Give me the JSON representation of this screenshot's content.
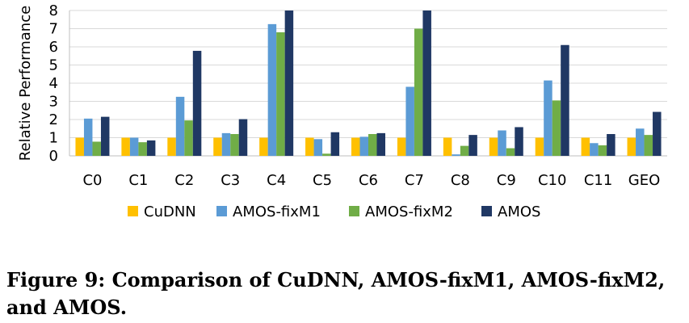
{
  "chart_data": {
    "type": "bar",
    "title": "",
    "xlabel": "",
    "ylabel": "Relative Performance",
    "ylim": [
      0,
      8
    ],
    "yticks": [
      "0",
      "1",
      "2",
      "3",
      "4",
      "5",
      "6",
      "7",
      "8"
    ],
    "grid": true,
    "legend_position": "bottom",
    "categories": [
      "C0",
      "C1",
      "C2",
      "C3",
      "C4",
      "C5",
      "C6",
      "C7",
      "C8",
      "C9",
      "C10",
      "C11",
      "GEO"
    ],
    "series": [
      {
        "name": "CuDNN",
        "color": "#FFC000",
        "values": [
          1,
          1,
          1,
          1,
          1,
          1,
          1,
          1,
          1,
          1,
          1,
          1,
          1
        ]
      },
      {
        "name": "AMOS-fixM1",
        "color": "#5B9BD5",
        "values": [
          2.05,
          1.0,
          3.25,
          1.25,
          7.25,
          0.92,
          1.05,
          3.8,
          0.08,
          1.4,
          4.15,
          0.7,
          1.5
        ]
      },
      {
        "name": "AMOS-fixM2",
        "color": "#70AD47",
        "values": [
          0.78,
          0.75,
          1.95,
          1.2,
          6.8,
          0.12,
          1.2,
          7.0,
          0.55,
          0.42,
          3.05,
          0.58,
          1.15
        ]
      },
      {
        "name": "AMOS",
        "color": "#203864",
        "values": [
          2.15,
          0.85,
          5.78,
          2.02,
          8.0,
          1.3,
          1.25,
          8.0,
          1.15,
          1.58,
          6.1,
          1.2,
          2.42
        ]
      }
    ]
  },
  "caption": {
    "text": "Figure 9: Comparison of CuDNN, AMOS-fixM1, AMOS-fixM2, and AMOS."
  }
}
